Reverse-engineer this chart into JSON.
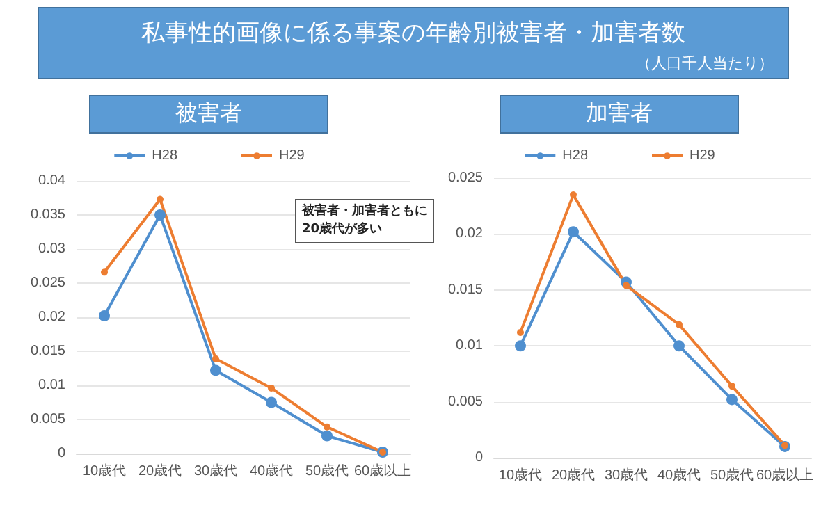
{
  "chart_data": [
    {
      "type": "line",
      "title": "被害者",
      "categories": [
        "10歳代",
        "20歳代",
        "30歳代",
        "40歳代",
        "50歳代",
        "60歳以上"
      ],
      "series": [
        {
          "name": "H28",
          "color": "#4f8fcf",
          "values": [
            0.0202,
            0.035,
            0.0122,
            0.0075,
            0.0026,
            0.0002
          ]
        },
        {
          "name": "H29",
          "color": "#ed7d31",
          "values": [
            0.0266,
            0.0373,
            0.0139,
            0.0096,
            0.0039,
            0.0002
          ]
        }
      ],
      "ylim": [
        0,
        0.04
      ],
      "yticks": [
        0,
        0.005,
        0.01,
        0.015,
        0.02,
        0.025,
        0.03,
        0.035,
        0.04
      ],
      "grid": "y",
      "legend": "top",
      "marker": "circle",
      "line_style": "solid",
      "annotations": [
        "私事性的画像に係る事案の年齢別被害者・加害者数",
        "（人口千人当たり）",
        "被害者・加害者ともに\n20歳代が多い"
      ]
    },
    {
      "type": "line",
      "title": "加害者",
      "categories": [
        "10歳代",
        "20歳代",
        "30歳代",
        "40歳代",
        "50歳代",
        "60歳以上"
      ],
      "series": [
        {
          "name": "H28",
          "color": "#4f8fcf",
          "values": [
            0.01,
            0.0202,
            0.0157,
            0.01,
            0.0052,
            0.001
          ]
        },
        {
          "name": "H29",
          "color": "#ed7d31",
          "values": [
            0.0112,
            0.0235,
            0.0154,
            0.0119,
            0.0064,
            0.0011
          ]
        }
      ],
      "ylim": [
        0,
        0.025
      ],
      "yticks": [
        0,
        0.005,
        0.01,
        0.015,
        0.02,
        0.025
      ],
      "grid": "y",
      "legend": "top",
      "marker": "circle",
      "line_style": "solid"
    }
  ]
}
